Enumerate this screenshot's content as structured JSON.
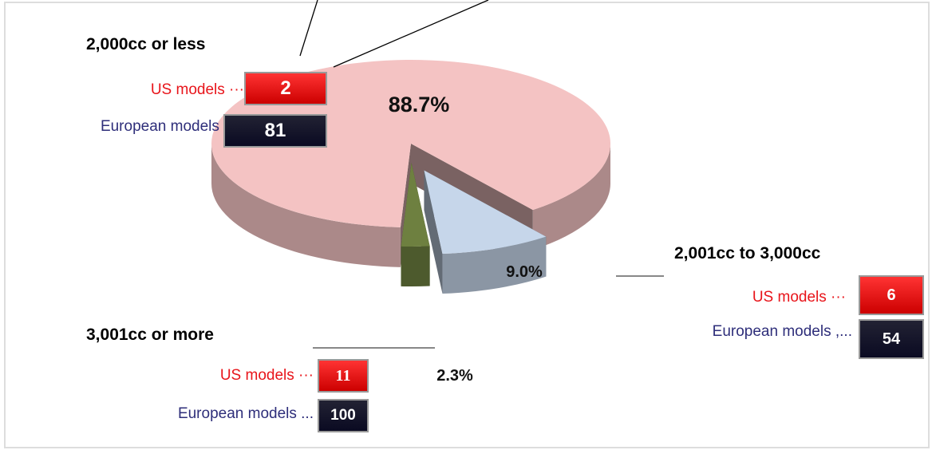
{
  "chart_data": {
    "type": "pie",
    "categories": [
      "2,000cc or less",
      "2,001cc to 3,000cc",
      "3,001cc or more"
    ],
    "values": [
      88.7,
      9.0,
      2.3
    ],
    "value_labels": [
      "88.7%",
      "9.0%",
      "2.3%"
    ],
    "colors": [
      "#f4c3c3",
      "#c6d6ea",
      "#6e8040"
    ],
    "groups": [
      {
        "us_label": "US models",
        "us": 2,
        "eu_label": "European models",
        "eu": 81
      },
      {
        "us_label": "US models",
        "us": 6,
        "eu_label": "European models",
        "eu": 54
      },
      {
        "us_label": "US models",
        "us": 11,
        "eu_label": "European models",
        "eu": 100
      }
    ]
  }
}
